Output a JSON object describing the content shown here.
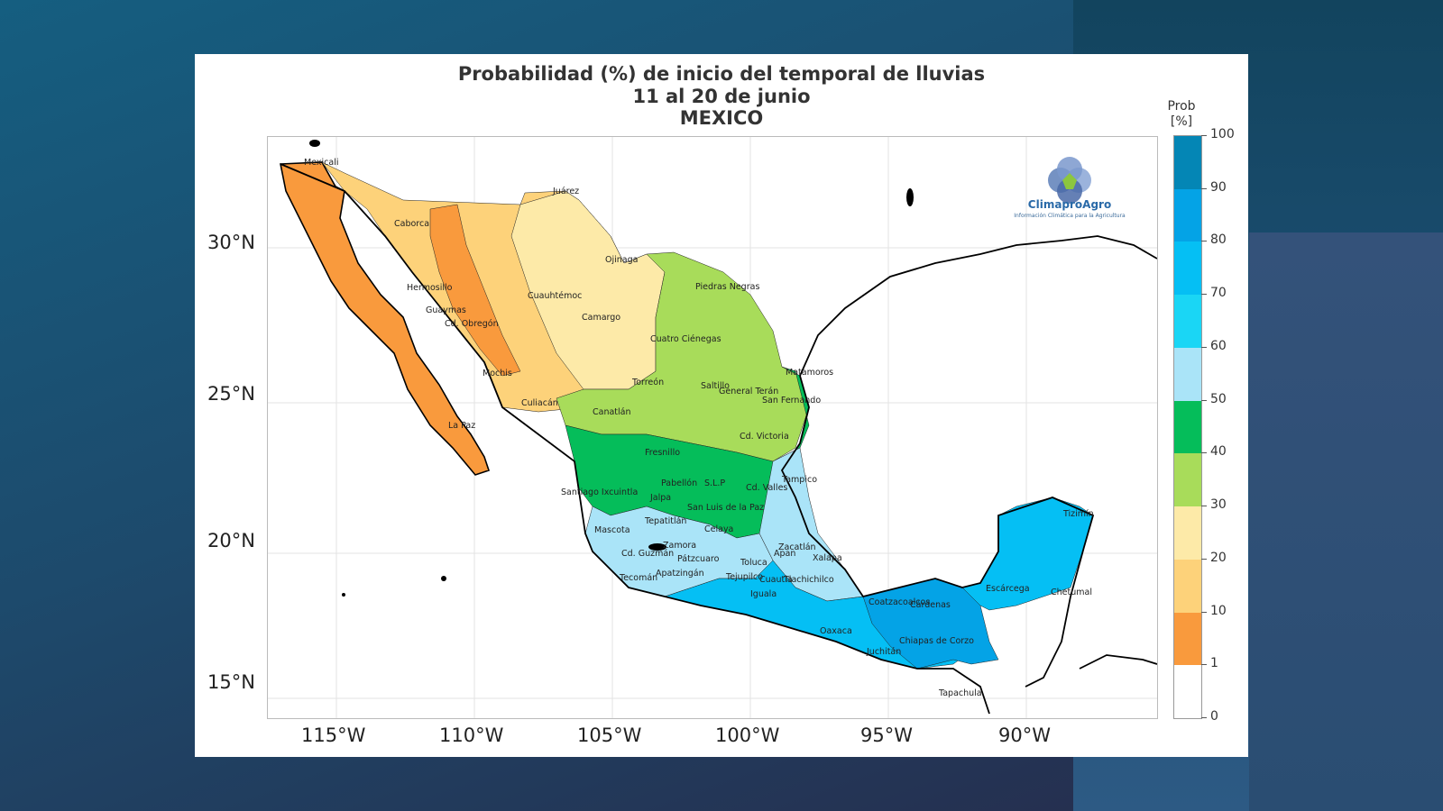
{
  "title": {
    "line1": "Probabilidad (%) de inicio del temporal de lluvias",
    "line2": "11 al 20 de junio",
    "line3": "MEXICO"
  },
  "lat_labels": [
    "30°N",
    "25°N",
    "20°N",
    "15°N"
  ],
  "lon_labels": [
    "115°W",
    "110°W",
    "105°W",
    "100°W",
    "95°W",
    "90°W"
  ],
  "colorbar": {
    "title_line1": "Prob",
    "title_line2": "[%]",
    "ticks": [
      "100",
      "90",
      "80",
      "70",
      "60",
      "50",
      "40",
      "30",
      "20",
      "10",
      "1",
      "0"
    ],
    "colors": [
      "#ffffff",
      "#f99a3d",
      "#fdd27a",
      "#fdeaa8",
      "#a8dc5a",
      "#05bd5a",
      "#aae4f8",
      "#1ad6f5",
      "#05bff4",
      "#04a3e6",
      "#0486b5"
    ]
  },
  "logo": {
    "name": "ClimaproAgro",
    "tagline": "Información Climática para la Agricultura"
  },
  "cities": [
    {
      "name": "Mexicali"
    },
    {
      "name": "Juárez"
    },
    {
      "name": "Caborca"
    },
    {
      "name": "Ojinaga"
    },
    {
      "name": "Hermosillo"
    },
    {
      "name": "Piedras Negras"
    },
    {
      "name": "Cuauhtémoc"
    },
    {
      "name": "Guaymas"
    },
    {
      "name": "Camargo"
    },
    {
      "name": "Cd. Obregón"
    },
    {
      "name": "Cuatro Ciénegas"
    },
    {
      "name": "Matamoros"
    },
    {
      "name": "Mochis"
    },
    {
      "name": "Torreón"
    },
    {
      "name": "Saltillo"
    },
    {
      "name": "General Terán"
    },
    {
      "name": "San Fernando"
    },
    {
      "name": "Culiacán"
    },
    {
      "name": "Canatlán"
    },
    {
      "name": "La Paz"
    },
    {
      "name": "Cd. Victoria"
    },
    {
      "name": "Fresnillo"
    },
    {
      "name": "Tampico"
    },
    {
      "name": "Pabellón"
    },
    {
      "name": "S.L.P"
    },
    {
      "name": "Cd. Valles"
    },
    {
      "name": "Santiago Ixcuintla"
    },
    {
      "name": "Jalpa"
    },
    {
      "name": "San Luis de la Paz"
    },
    {
      "name": "Tepatitlán"
    },
    {
      "name": "Mascota"
    },
    {
      "name": "Celaya"
    },
    {
      "name": "Zamora"
    },
    {
      "name": "Zacatlán"
    },
    {
      "name": "Cd. Guzmán"
    },
    {
      "name": "Pátzcuaro"
    },
    {
      "name": "Toluca"
    },
    {
      "name": "Apan"
    },
    {
      "name": "Xalapa"
    },
    {
      "name": "Tecomán"
    },
    {
      "name": "Apatzingán"
    },
    {
      "name": "Tejupilco"
    },
    {
      "name": "Cuautla"
    },
    {
      "name": "Tlachichilco"
    },
    {
      "name": "Iguala"
    },
    {
      "name": "Tizimín"
    },
    {
      "name": "Escárcega"
    },
    {
      "name": "Chetumal"
    },
    {
      "name": "Coatzacoalcos"
    },
    {
      "name": "Cárdenas"
    },
    {
      "name": "Oaxaca"
    },
    {
      "name": "Juchitán"
    },
    {
      "name": "Chiapas de Corzo"
    },
    {
      "name": "Tapachula"
    }
  ]
}
